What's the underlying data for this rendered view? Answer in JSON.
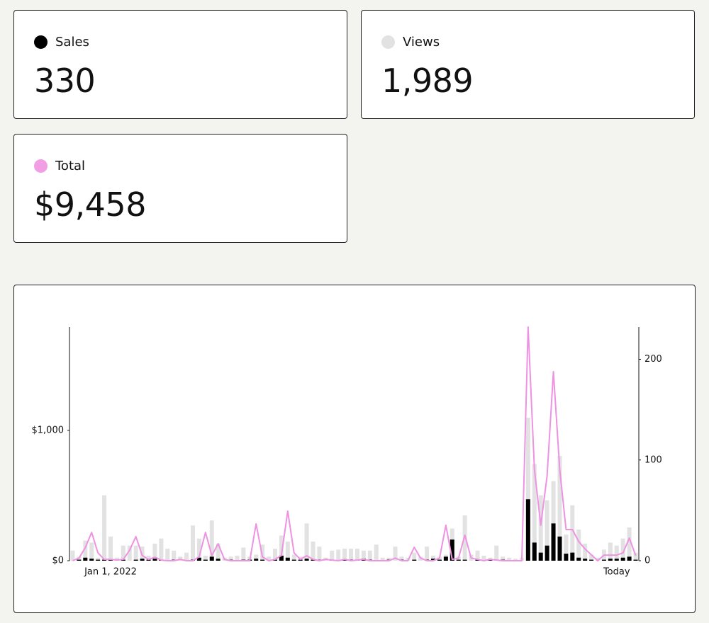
{
  "cards": [
    {
      "label": "Sales",
      "value": "330",
      "color": "#000000"
    },
    {
      "label": "Views",
      "value": "1,989",
      "color": "#e2e2e2"
    },
    {
      "label": "Total",
      "value": "$9,458",
      "color": "#f19ee4"
    }
  ],
  "chart_data": {
    "type": "combo",
    "categories": [
      null,
      null,
      null,
      null,
      null,
      null,
      "Jan 1, 2022",
      null,
      null,
      null,
      null,
      null,
      null,
      null,
      null,
      null,
      null,
      null,
      null,
      null,
      null,
      null,
      null,
      null,
      null,
      null,
      null,
      null,
      null,
      null,
      null,
      null,
      null,
      null,
      null,
      null,
      null,
      null,
      null,
      null,
      null,
      null,
      null,
      null,
      null,
      null,
      null,
      null,
      null,
      null,
      null,
      null,
      null,
      null,
      null,
      null,
      null,
      null,
      null,
      null,
      null,
      null,
      null,
      null,
      null,
      null,
      null,
      null,
      null,
      null,
      null,
      null,
      null,
      null,
      null,
      null,
      null,
      null,
      null,
      null,
      null,
      null,
      null,
      null,
      null,
      null,
      "Today",
      null,
      null,
      null
    ],
    "series": [
      {
        "type": "bar",
        "axis": "y2",
        "color": "#e2e2e2",
        "values": [
          10,
          4,
          20,
          18,
          3,
          65,
          24,
          3,
          15,
          15,
          15,
          14,
          5,
          17,
          22,
          12,
          10,
          4,
          8,
          35,
          22,
          5,
          40,
          17,
          3,
          4,
          5,
          13,
          4,
          6,
          16,
          4,
          12,
          25,
          19,
          6,
          4,
          37,
          19,
          14,
          3,
          10,
          11,
          12,
          12,
          12,
          10,
          10,
          16,
          3,
          3,
          14,
          4,
          3,
          8,
          4,
          14,
          5,
          4,
          6,
          32,
          4,
          45,
          6,
          10,
          5,
          3,
          15,
          4,
          3,
          2,
          3,
          142,
          96,
          65,
          60,
          79,
          104,
          26,
          55,
          31,
          17,
          6,
          3,
          11,
          18,
          15,
          22,
          33,
          8
        ]
      },
      {
        "type": "bar",
        "axis": "y2",
        "color": "#000000",
        "values": [
          0,
          1,
          3,
          2,
          1,
          1,
          1,
          0,
          1,
          0,
          1,
          2,
          1,
          2,
          1,
          0,
          1,
          0,
          0,
          1,
          3,
          1,
          4,
          2,
          0,
          1,
          0,
          1,
          1,
          2,
          1,
          0,
          1,
          5,
          3,
          1,
          1,
          2,
          1,
          1,
          0,
          1,
          0,
          1,
          1,
          1,
          2,
          1,
          0,
          0,
          1,
          0,
          1,
          0,
          1,
          0,
          1,
          2,
          1,
          4,
          21,
          1,
          1,
          0,
          1,
          0,
          1,
          0,
          1,
          0,
          0,
          0,
          61,
          18,
          8,
          15,
          37,
          24,
          7,
          8,
          3,
          2,
          1,
          0,
          1,
          2,
          2,
          3,
          4,
          1
        ]
      },
      {
        "type": "line",
        "axis": "y",
        "color": "#ee92e2",
        "values": [
          0,
          20,
          100,
          217,
          60,
          10,
          10,
          5,
          10,
          80,
          185,
          40,
          10,
          27,
          5,
          0,
          0,
          10,
          0,
          0,
          30,
          217,
          40,
          130,
          10,
          0,
          0,
          0,
          0,
          283,
          30,
          0,
          10,
          40,
          380,
          60,
          10,
          38,
          10,
          0,
          10,
          5,
          0,
          10,
          0,
          5,
          10,
          0,
          0,
          0,
          0,
          20,
          0,
          0,
          103,
          20,
          0,
          0,
          20,
          272,
          10,
          20,
          196,
          20,
          10,
          0,
          10,
          5,
          0,
          0,
          0,
          0,
          1793,
          700,
          272,
          650,
          1451,
          700,
          239,
          239,
          147,
          90,
          45,
          0,
          43,
          43,
          43,
          60,
          174,
          40
        ]
      }
    ],
    "ylim": [
      0,
      1793
    ],
    "yticks": [
      {
        "value": 0,
        "label": "$0"
      },
      {
        "value": 1000,
        "label": "$1,000"
      }
    ],
    "y2lim": [
      0,
      232
    ],
    "y2ticks": [
      0,
      100,
      200
    ],
    "grid": false
  }
}
